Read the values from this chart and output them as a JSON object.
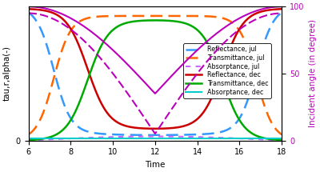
{
  "xlabel": "Time",
  "ylabel_left": "tau,r,alpha(-)",
  "ylabel_right": "Incident angle (in degree)",
  "xlim": [
    6,
    18
  ],
  "ylim_left": [
    0,
    1
  ],
  "ylim_right": [
    0,
    100
  ],
  "xticks": [
    6,
    8,
    10,
    12,
    14,
    16,
    18
  ],
  "yticks_left": [
    0
  ],
  "yticks_right": [
    0,
    50,
    100
  ],
  "background_color": "#ffffff",
  "lines": [
    {
      "label": "Reflectance, jul",
      "color": "#3399ff",
      "linestyle": "--",
      "linewidth": 1.8,
      "dashes": [
        6,
        3
      ]
    },
    {
      "label": "Transmittance, jul",
      "color": "#ff6600",
      "linestyle": "--",
      "linewidth": 1.8,
      "dashes": [
        6,
        3
      ]
    },
    {
      "label": "Absorptance, jul",
      "color": "#cc66ff",
      "linestyle": "--",
      "linewidth": 1.5,
      "dashes": [
        3,
        3
      ]
    },
    {
      "label": "Reflectance, dec",
      "color": "#cc0000",
      "linestyle": "-",
      "linewidth": 1.8,
      "dashes": null
    },
    {
      "label": "Transmittance, dec",
      "color": "#00aa00",
      "linestyle": "-",
      "linewidth": 1.8,
      "dashes": null
    },
    {
      "label": "Absorptance, dec",
      "color": "#00cccc",
      "linestyle": "-",
      "linewidth": 1.5,
      "dashes": null
    }
  ],
  "incident_jul_color": "#bb00bb",
  "incident_dec_color": "#bb00bb",
  "incident_linewidth": 1.5,
  "legend_fontsize": 5.8,
  "axis_label_fontsize": 7.5,
  "tick_fontsize": 7.0
}
